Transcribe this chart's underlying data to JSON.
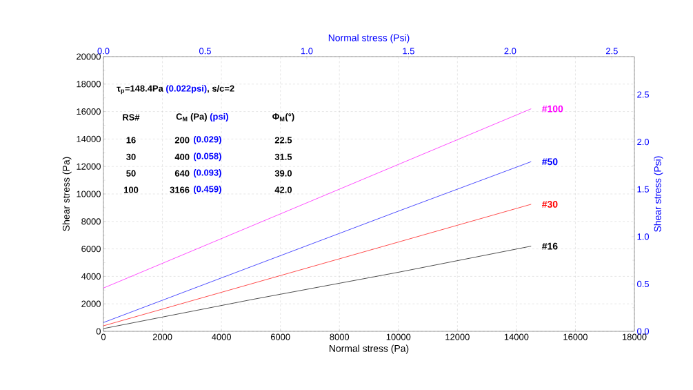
{
  "chart_data": {
    "type": "line",
    "xlabel": "Normal stress (Pa)",
    "ylabel": "Shear stress (Pa)",
    "x2label": "Normal stress (Psi)",
    "y2label": "Shear stress (Psi)",
    "x": [
      0,
      5000,
      10000,
      14500
    ],
    "series": [
      {
        "name": "#16",
        "color": "#000000",
        "values": [
          200,
          2300,
          4300,
          6200
        ]
      },
      {
        "name": "#30",
        "color": "#ff0000",
        "values": [
          400,
          3450,
          6500,
          9250
        ]
      },
      {
        "name": "#50",
        "color": "#0000ff",
        "values": [
          640,
          4700,
          8750,
          12350
        ]
      },
      {
        "name": "#100",
        "color": "#ff00ff",
        "values": [
          3150,
          7650,
          12150,
          16200
        ]
      }
    ],
    "xlim": [
      0,
      18000
    ],
    "ylim": [
      0,
      20000
    ],
    "xticks": [
      0,
      2000,
      4000,
      6000,
      8000,
      10000,
      12000,
      14000,
      16000,
      18000
    ],
    "yticks": [
      0,
      2000,
      4000,
      6000,
      8000,
      10000,
      12000,
      14000,
      16000,
      18000,
      20000
    ],
    "x2lim": [
      0,
      2.6107
    ],
    "x2ticks": [
      {
        "value": 0,
        "label": "0.0"
      },
      {
        "value": 0.5,
        "label": "0.5"
      },
      {
        "value": 1,
        "label": "1.0"
      },
      {
        "value": 1.5,
        "label": "1.5"
      },
      {
        "value": 2,
        "label": "2.0"
      },
      {
        "value": 2.5,
        "label": "2.5"
      }
    ],
    "y2lim": [
      0,
      2.9008
    ],
    "y2ticks": [
      {
        "value": 0,
        "label": "0.0"
      },
      {
        "value": 0.5,
        "label": "0.5"
      },
      {
        "value": 1,
        "label": "1.0"
      },
      {
        "value": 1.5,
        "label": "1.5"
      },
      {
        "value": 2,
        "label": "2.0"
      },
      {
        "value": 2.5,
        "label": "2.5"
      }
    ],
    "grid": true,
    "marker": "none",
    "line_style": "solid",
    "annotations": [
      "τ$_{p}$=148.4Pa",
      "(0.022psi)",
      ", s/c=2",
      "RS#",
      "C$_{M}$ (Pa)",
      "(psi)",
      "Φ$_{M}$(°)",
      "16",
      "200",
      "(0.029)",
      "22.5",
      "30",
      "400",
      "(0.058)",
      "31.5",
      "50",
      "640",
      "(0.093)",
      "39.0",
      "100",
      "3166",
      "(0.459)",
      "42.0"
    ]
  }
}
